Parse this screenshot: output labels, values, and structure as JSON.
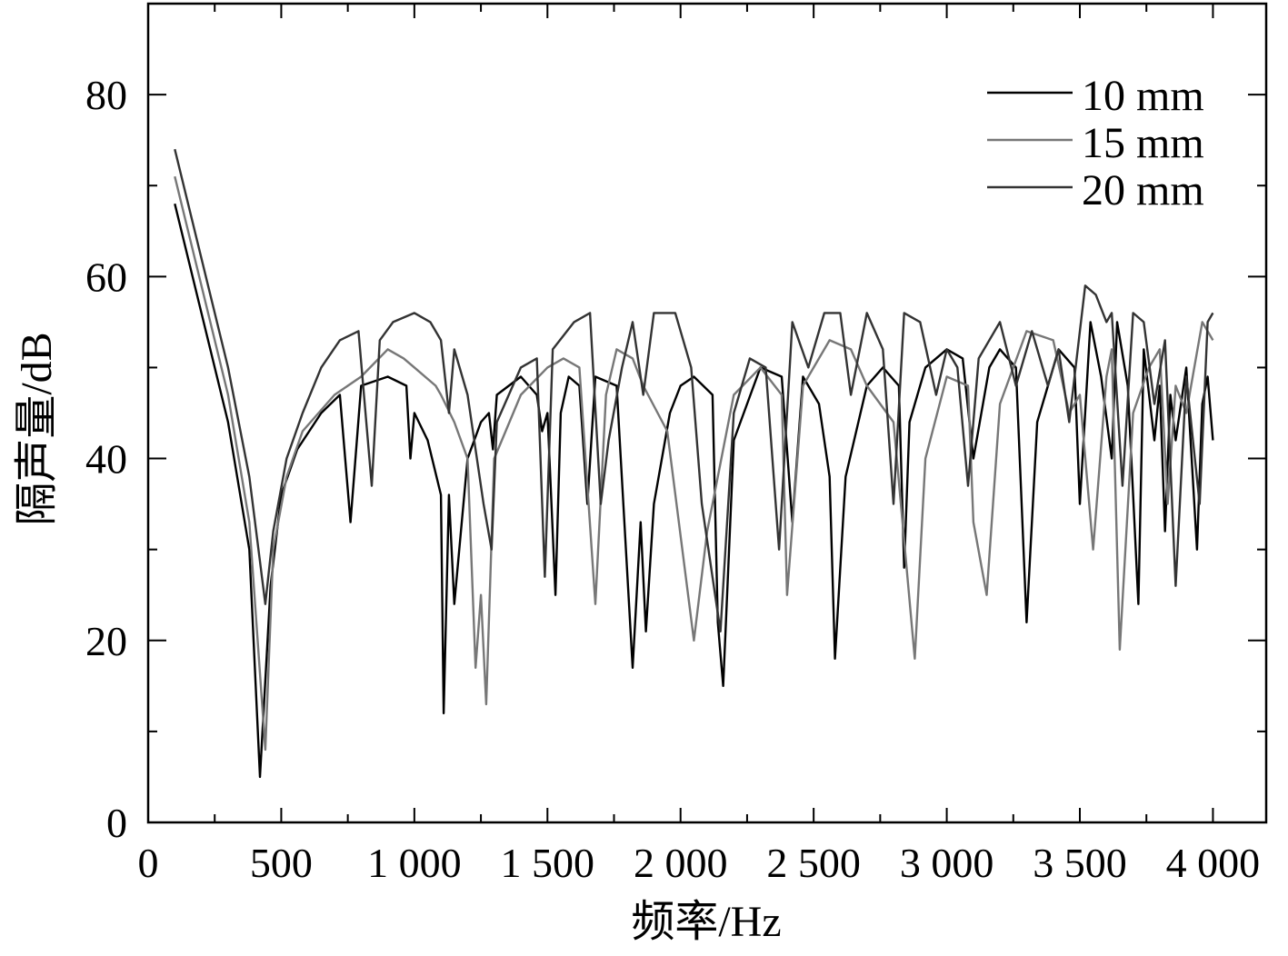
{
  "chart_data": {
    "type": "line",
    "xlabel": "频率/Hz",
    "ylabel": "隔声量/dB",
    "xlim": [
      0,
      4200
    ],
    "ylim": [
      0,
      90
    ],
    "x_ticks": [
      0,
      500,
      1000,
      1500,
      2000,
      2500,
      3000,
      3500,
      4000
    ],
    "x_tick_labels": [
      "0",
      "500",
      "1 000",
      "1 500",
      "2 000",
      "2 500",
      "3 000",
      "3 500",
      "4 000"
    ],
    "y_ticks": [
      0,
      20,
      40,
      60,
      80
    ],
    "y_tick_labels": [
      "0",
      "20",
      "40",
      "60",
      "80"
    ],
    "grid": false,
    "legend_position": "top-right",
    "series": [
      {
        "name": "10 mm",
        "color": "#000000",
        "points": [
          [
            100,
            68
          ],
          [
            200,
            56
          ],
          [
            300,
            44
          ],
          [
            380,
            30
          ],
          [
            420,
            5
          ],
          [
            460,
            26
          ],
          [
            500,
            36
          ],
          [
            560,
            41
          ],
          [
            650,
            45
          ],
          [
            720,
            47
          ],
          [
            760,
            33
          ],
          [
            800,
            48
          ],
          [
            900,
            49
          ],
          [
            970,
            48
          ],
          [
            985,
            40
          ],
          [
            1000,
            45
          ],
          [
            1050,
            42
          ],
          [
            1100,
            36
          ],
          [
            1110,
            12
          ],
          [
            1130,
            36
          ],
          [
            1150,
            24
          ],
          [
            1200,
            40
          ],
          [
            1250,
            44
          ],
          [
            1280,
            45
          ],
          [
            1295,
            41
          ],
          [
            1310,
            47
          ],
          [
            1400,
            49
          ],
          [
            1460,
            47
          ],
          [
            1480,
            43
          ],
          [
            1500,
            45
          ],
          [
            1530,
            25
          ],
          [
            1550,
            45
          ],
          [
            1580,
            49
          ],
          [
            1620,
            48
          ],
          [
            1650,
            35
          ],
          [
            1680,
            49
          ],
          [
            1760,
            48
          ],
          [
            1820,
            17
          ],
          [
            1850,
            33
          ],
          [
            1870,
            21
          ],
          [
            1900,
            35
          ],
          [
            1960,
            45
          ],
          [
            2000,
            48
          ],
          [
            2050,
            49
          ],
          [
            2120,
            47
          ],
          [
            2140,
            22
          ],
          [
            2160,
            15
          ],
          [
            2200,
            42
          ],
          [
            2300,
            50
          ],
          [
            2380,
            49
          ],
          [
            2420,
            33
          ],
          [
            2460,
            49
          ],
          [
            2520,
            46
          ],
          [
            2560,
            38
          ],
          [
            2580,
            18
          ],
          [
            2620,
            38
          ],
          [
            2700,
            48
          ],
          [
            2760,
            50
          ],
          [
            2820,
            48
          ],
          [
            2840,
            28
          ],
          [
            2860,
            44
          ],
          [
            2920,
            50
          ],
          [
            3000,
            52
          ],
          [
            3060,
            51
          ],
          [
            3100,
            40
          ],
          [
            3160,
            50
          ],
          [
            3200,
            52
          ],
          [
            3260,
            50
          ],
          [
            3300,
            22
          ],
          [
            3340,
            44
          ],
          [
            3380,
            48
          ],
          [
            3420,
            52
          ],
          [
            3480,
            50
          ],
          [
            3500,
            35
          ],
          [
            3540,
            55
          ],
          [
            3580,
            49
          ],
          [
            3620,
            40
          ],
          [
            3640,
            55
          ],
          [
            3680,
            48
          ],
          [
            3700,
            36
          ],
          [
            3720,
            24
          ],
          [
            3740,
            52
          ],
          [
            3780,
            42
          ],
          [
            3800,
            48
          ],
          [
            3820,
            32
          ],
          [
            3840,
            47
          ],
          [
            3860,
            42
          ],
          [
            3900,
            50
          ],
          [
            3940,
            30
          ],
          [
            3960,
            46
          ],
          [
            3980,
            49
          ],
          [
            4000,
            42
          ]
        ]
      },
      {
        "name": "15 mm",
        "color": "#777777",
        "points": [
          [
            100,
            71
          ],
          [
            200,
            59
          ],
          [
            300,
            47
          ],
          [
            380,
            33
          ],
          [
            440,
            8
          ],
          [
            470,
            30
          ],
          [
            520,
            38
          ],
          [
            580,
            43
          ],
          [
            700,
            47
          ],
          [
            800,
            49
          ],
          [
            900,
            52
          ],
          [
            960,
            51
          ],
          [
            1000,
            50
          ],
          [
            1080,
            48
          ],
          [
            1100,
            47
          ],
          [
            1150,
            44
          ],
          [
            1200,
            40
          ],
          [
            1230,
            17
          ],
          [
            1250,
            25
          ],
          [
            1270,
            13
          ],
          [
            1300,
            40
          ],
          [
            1400,
            47
          ],
          [
            1500,
            50
          ],
          [
            1560,
            51
          ],
          [
            1620,
            50
          ],
          [
            1680,
            24
          ],
          [
            1720,
            47
          ],
          [
            1760,
            52
          ],
          [
            1820,
            51
          ],
          [
            1860,
            48
          ],
          [
            1950,
            43
          ],
          [
            2050,
            20
          ],
          [
            2100,
            32
          ],
          [
            2200,
            47
          ],
          [
            2300,
            50
          ],
          [
            2380,
            47
          ],
          [
            2400,
            25
          ],
          [
            2460,
            48
          ],
          [
            2560,
            53
          ],
          [
            2640,
            52
          ],
          [
            2700,
            48
          ],
          [
            2800,
            44
          ],
          [
            2880,
            18
          ],
          [
            2920,
            40
          ],
          [
            3000,
            49
          ],
          [
            3080,
            48
          ],
          [
            3100,
            33
          ],
          [
            3150,
            25
          ],
          [
            3200,
            46
          ],
          [
            3300,
            54
          ],
          [
            3400,
            53
          ],
          [
            3460,
            45
          ],
          [
            3500,
            47
          ],
          [
            3550,
            30
          ],
          [
            3600,
            49
          ],
          [
            3620,
            52
          ],
          [
            3650,
            19
          ],
          [
            3700,
            45
          ],
          [
            3760,
            50
          ],
          [
            3800,
            52
          ],
          [
            3830,
            35
          ],
          [
            3860,
            48
          ],
          [
            3900,
            45
          ],
          [
            3960,
            55
          ],
          [
            4000,
            53
          ]
        ]
      },
      {
        "name": "20 mm",
        "color": "#333333",
        "points": [
          [
            100,
            74
          ],
          [
            200,
            62
          ],
          [
            300,
            50
          ],
          [
            380,
            38
          ],
          [
            440,
            24
          ],
          [
            470,
            32
          ],
          [
            520,
            40
          ],
          [
            580,
            45
          ],
          [
            650,
            50
          ],
          [
            720,
            53
          ],
          [
            790,
            54
          ],
          [
            840,
            37
          ],
          [
            870,
            53
          ],
          [
            920,
            55
          ],
          [
            1000,
            56
          ],
          [
            1060,
            55
          ],
          [
            1100,
            53
          ],
          [
            1130,
            45
          ],
          [
            1150,
            52
          ],
          [
            1200,
            47
          ],
          [
            1260,
            35
          ],
          [
            1290,
            30
          ],
          [
            1310,
            44
          ],
          [
            1400,
            50
          ],
          [
            1460,
            51
          ],
          [
            1490,
            27
          ],
          [
            1520,
            52
          ],
          [
            1600,
            55
          ],
          [
            1660,
            56
          ],
          [
            1700,
            35
          ],
          [
            1730,
            42
          ],
          [
            1780,
            50
          ],
          [
            1820,
            55
          ],
          [
            1860,
            47
          ],
          [
            1900,
            56
          ],
          [
            1980,
            56
          ],
          [
            2040,
            50
          ],
          [
            2080,
            35
          ],
          [
            2150,
            21
          ],
          [
            2200,
            45
          ],
          [
            2260,
            51
          ],
          [
            2320,
            50
          ],
          [
            2370,
            30
          ],
          [
            2420,
            55
          ],
          [
            2480,
            50
          ],
          [
            2540,
            56
          ],
          [
            2600,
            56
          ],
          [
            2640,
            47
          ],
          [
            2700,
            56
          ],
          [
            2760,
            52
          ],
          [
            2800,
            35
          ],
          [
            2840,
            56
          ],
          [
            2900,
            55
          ],
          [
            2960,
            47
          ],
          [
            3000,
            52
          ],
          [
            3040,
            50
          ],
          [
            3080,
            37
          ],
          [
            3120,
            51
          ],
          [
            3200,
            55
          ],
          [
            3260,
            48
          ],
          [
            3320,
            54
          ],
          [
            3380,
            48
          ],
          [
            3420,
            52
          ],
          [
            3460,
            44
          ],
          [
            3520,
            59
          ],
          [
            3560,
            58
          ],
          [
            3600,
            55
          ],
          [
            3620,
            56
          ],
          [
            3660,
            37
          ],
          [
            3700,
            56
          ],
          [
            3740,
            55
          ],
          [
            3780,
            46
          ],
          [
            3820,
            53
          ],
          [
            3860,
            26
          ],
          [
            3900,
            49
          ],
          [
            3950,
            35
          ],
          [
            3980,
            55
          ],
          [
            4000,
            56
          ]
        ]
      }
    ]
  }
}
